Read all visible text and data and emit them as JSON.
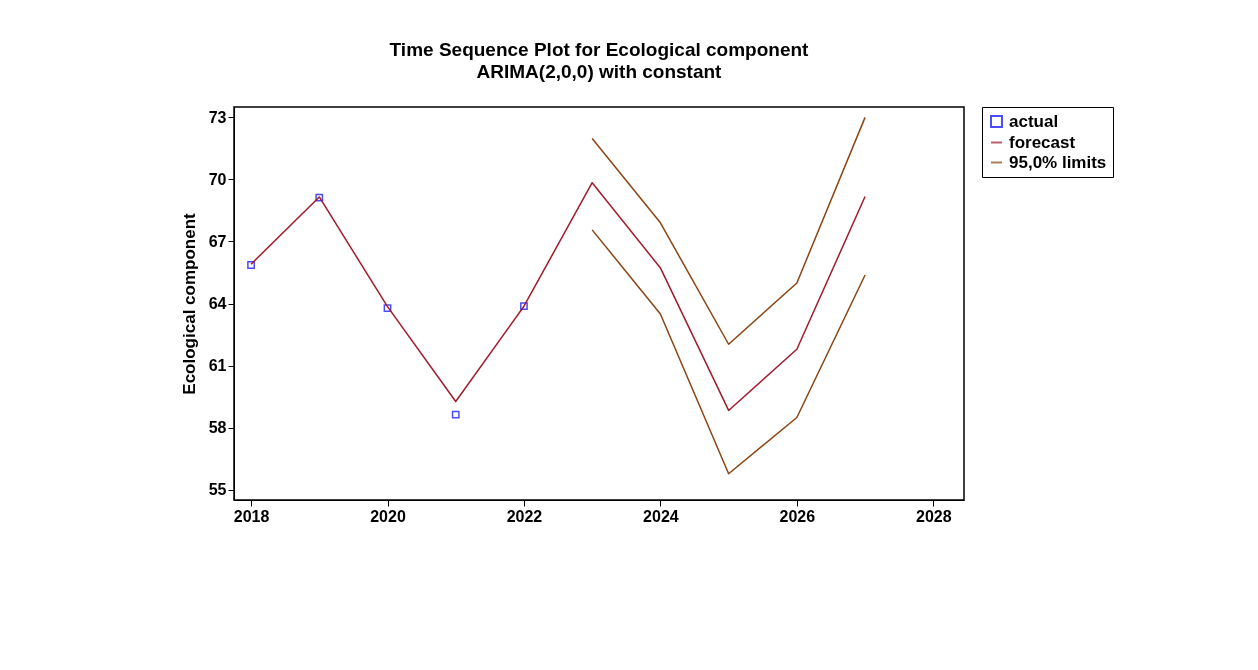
{
  "chart_data": {
    "type": "line",
    "title": "Time Sequence Plot for Ecological component",
    "subtitle": "ARIMA(2,0,0) with constant",
    "ylabel": "Ecological component",
    "xlim": [
      2017.75,
      2028.45
    ],
    "xticks": [
      2018,
      2020,
      2022,
      2024,
      2026,
      2028
    ],
    "ylim": [
      54.5,
      73.5
    ],
    "yticks": [
      55,
      58,
      61,
      64,
      67,
      70,
      73
    ],
    "grid": false,
    "legend": "right",
    "series": [
      {
        "name": "actual",
        "type": "scatter",
        "marker": "square",
        "color": "#0000ff",
        "x": [
          2018,
          2019,
          2020,
          2021,
          2022
        ],
        "values": [
          65.86,
          69.12,
          63.78,
          58.63,
          63.87
        ]
      },
      {
        "name": "forecast",
        "color": "#a01c2c",
        "x": [
          2018,
          2019,
          2020,
          2021,
          2022,
          2023,
          2024,
          2025,
          2026,
          2027
        ],
        "values": [
          65.9,
          69.15,
          63.85,
          59.26,
          63.87,
          69.84,
          65.72,
          58.83,
          61.79,
          69.17
        ]
      },
      {
        "name": "95,0% limits",
        "color": "#8b4513",
        "x": [
          2023,
          2024,
          2025,
          2026,
          2027
        ],
        "values": [
          71.98,
          67.9,
          62.03,
          64.99,
          73.0
        ]
      },
      {
        "color": "#8b4513",
        "x": [
          2023,
          2024,
          2025,
          2026,
          2027
        ],
        "values": [
          67.56,
          63.49,
          55.77,
          58.49,
          65.38
        ]
      }
    ]
  }
}
